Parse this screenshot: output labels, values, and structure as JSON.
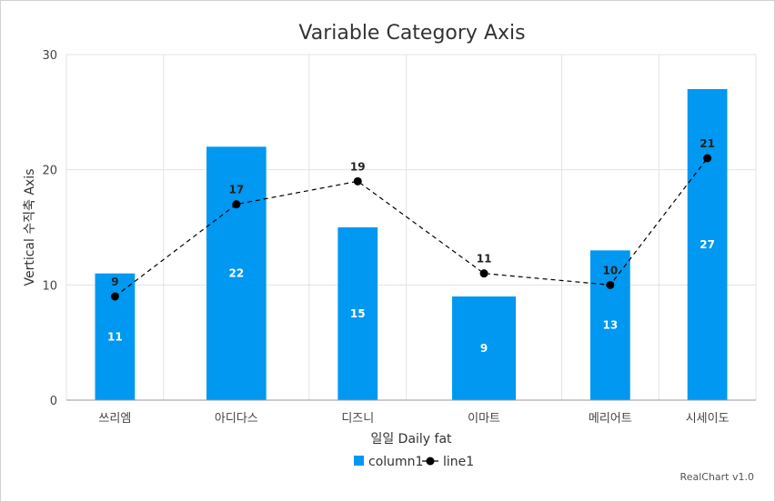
{
  "chart_data": {
    "type": "bar",
    "title": "Variable Category Axis",
    "xlabel": "일일 Daily fat",
    "ylabel": "Vertical 수직축 Axis",
    "ylim": [
      0,
      30
    ],
    "yticks": [
      0,
      10,
      20,
      30
    ],
    "grid": true,
    "legend_position": "bottom",
    "categories": [
      "쓰리엠",
      "아디다스",
      "디즈니",
      "이마트",
      "메리어트",
      "시세이도"
    ],
    "category_widths": [
      1,
      1.5,
      1,
      1.6,
      1,
      1
    ],
    "series": [
      {
        "name": "column1",
        "type": "bar",
        "color": "#0098f0",
        "values": [
          11,
          22,
          15,
          9,
          13,
          27
        ]
      },
      {
        "name": "line1",
        "type": "line",
        "style": "dashed",
        "color": "#000000",
        "values": [
          9,
          17,
          19,
          11,
          10,
          21
        ]
      }
    ]
  },
  "credit": "RealChart v1.0"
}
